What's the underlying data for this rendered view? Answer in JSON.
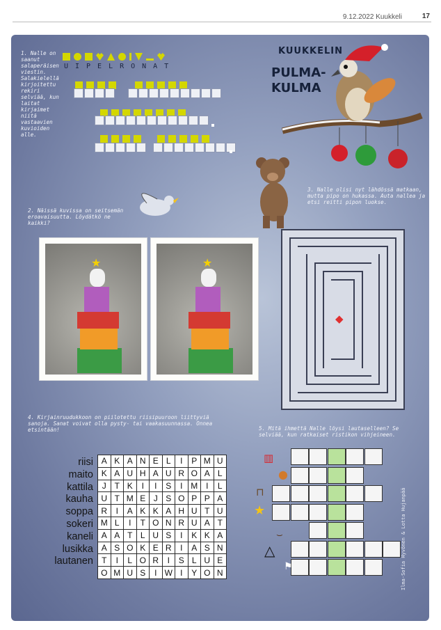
{
  "header": {
    "date": "9.12.2022 Kuukkeli",
    "page": "17"
  },
  "brand": {
    "name": "KUUKKELIN",
    "title1": "PULMA-",
    "title2": "KULMA"
  },
  "task1": {
    "text": "1. Nalle on saanut salaperäisen viestin. Salakielellä kirjoitettu rekiri selviää, kun laitat kirjaimet niitä vastaavien kuvioiden alle.",
    "letters": "UIPELRONAT"
  },
  "task2": {
    "text": "2. Näissä kuvissa on seitsemän eroavaisuutta. Löydätkö ne kaikki?"
  },
  "task3": {
    "text": "3. Nalle olisi nyt lähdössä matkaan, mutta pipo on hukassa. Auta nallea ja etsi reitti pipon luokse."
  },
  "task4": {
    "text": "4. Kirjainruudukkoon on piilotettu riisipuuroon liittyviä sanoja. Sanat voivat olla pysty- tai vaakasuunnassa. Onnea etsintään!",
    "words": [
      "riisi",
      "maito",
      "kattila",
      "kauha",
      "soppa",
      "sokeri",
      "kaneli",
      "lusikka",
      "lautanen"
    ],
    "grid": [
      "AKANELIPMU",
      "KAUHAUROAL",
      "JTKIISIMIL",
      "UTMEJSOPPA",
      "RIAKKAHUTU",
      "MLITONRUAT",
      "AATLUSIKKA",
      "ASOKERIASN",
      "TILORISLUE",
      "OMUSIWIYON"
    ]
  },
  "task5": {
    "text": "5. Mitä ihmettä Nalle löysi lautaselleen? Se selviää, kun ratkaiset ristikon vihjeineen."
  },
  "credit": "Ilma-Sofia Hyvönen & Lotta Hujanpää",
  "icons": [
    "comb-icon",
    "squirrel-icon",
    "swing-icon",
    "star-icon",
    "sled-icon",
    "triangle-icon",
    "flag-icon",
    "bear-icon",
    "bird-icon",
    "hat-icon"
  ]
}
